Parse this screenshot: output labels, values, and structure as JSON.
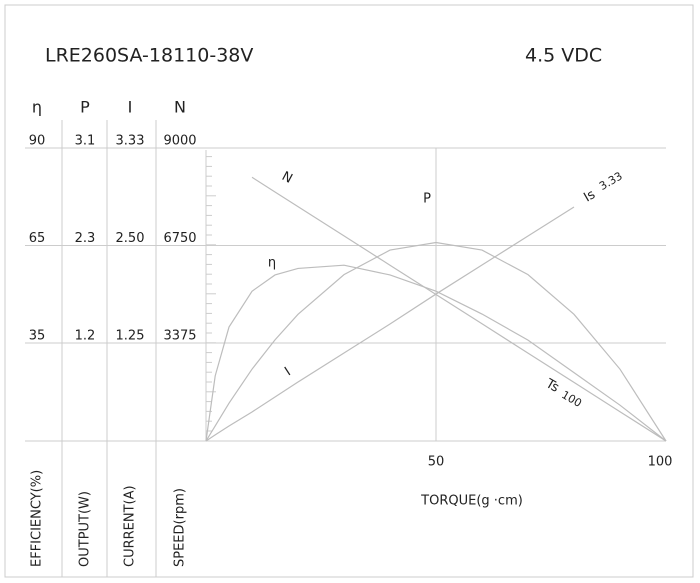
{
  "chart_data": {
    "type": "line",
    "title": "LRE260SA-18110-38V",
    "subtitle": "4.5 VDC",
    "x_label": "TORQUE(g ·cm)",
    "xlim": [
      0,
      100
    ],
    "xticks": [
      50,
      100
    ],
    "axes": [
      {
        "symbol": "η",
        "label": "EFFICIENCY(%)",
        "ylim": [
          0,
          90
        ],
        "ticks": [
          90,
          65,
          35
        ]
      },
      {
        "symbol": "P",
        "label": "OUTPUT(W)",
        "ylim": [
          0,
          3.1
        ],
        "ticks": [
          3.1,
          2.3,
          1.2
        ]
      },
      {
        "symbol": "I",
        "label": "CURRENT(A)",
        "ylim": [
          0,
          3.33
        ],
        "ticks": [
          3.33,
          {
            "value": 2.5,
            "label": "2.50"
          },
          1.25
        ]
      },
      {
        "symbol": "N",
        "label": "SPEED(rpm)",
        "ylim": [
          0,
          9000
        ],
        "ticks": [
          9000,
          6750,
          3375
        ]
      }
    ],
    "x": [
      0,
      2,
      5,
      10,
      15,
      20,
      30,
      40,
      50,
      60,
      70,
      80,
      90,
      100
    ],
    "series": [
      {
        "name": "N",
        "axis": 3,
        "color": "#bdbdbd",
        "values": [
          null,
          null,
          null,
          8100,
          7650,
          7200,
          6300,
          5400,
          4500,
          3600,
          2700,
          1800,
          900,
          0
        ]
      },
      {
        "name": "P",
        "axis": 1,
        "color": "#bdbdbd",
        "values": [
          0,
          0.16,
          0.4,
          0.76,
          1.07,
          1.34,
          1.76,
          2.02,
          2.1,
          2.02,
          1.76,
          1.34,
          0.76,
          0
        ]
      },
      {
        "name": "η",
        "axis": 0,
        "color": "#bdbdbd",
        "values": [
          0,
          20,
          35,
          46,
          51,
          53,
          54,
          51,
          46,
          39,
          31,
          21,
          11,
          0
        ]
      },
      {
        "name": "I",
        "axis": 2,
        "color": "#bdbdbd",
        "values": [
          0,
          0.07,
          0.17,
          0.33,
          0.5,
          0.67,
          1.0,
          1.33,
          1.67,
          2.0,
          2.33,
          2.66,
          null,
          null
        ]
      }
    ],
    "annotations": {
      "stall_current": "Is",
      "stall_current_value": "3.33",
      "stall_torque": "Ts",
      "stall_torque_value": "100"
    },
    "grid": true
  }
}
